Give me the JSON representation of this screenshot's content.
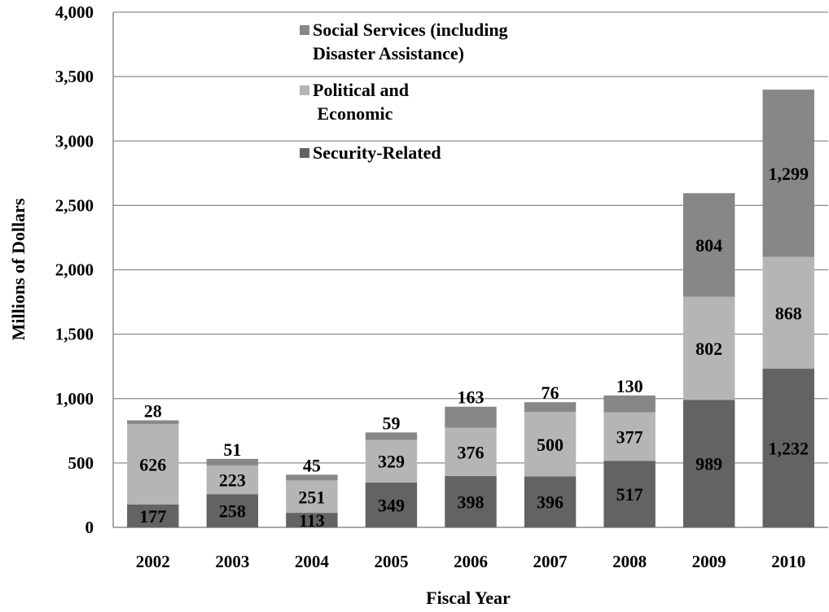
{
  "chart_data": {
    "type": "bar",
    "stacked": true,
    "categories": [
      "2002",
      "2003",
      "2004",
      "2005",
      "2006",
      "2007",
      "2008",
      "2009",
      "2010"
    ],
    "series": [
      {
        "name": "Security-Related",
        "values": [
          177,
          258,
          113,
          349,
          398,
          396,
          517,
          989,
          1232
        ],
        "labels": [
          "177",
          "258",
          "113",
          "349",
          "398",
          "396",
          "517",
          "989",
          "1,232"
        ],
        "color": "#636363"
      },
      {
        "name": "Political and Economic",
        "name_lines": [
          "Political and",
          " Economic"
        ],
        "values": [
          626,
          223,
          251,
          329,
          376,
          500,
          377,
          802,
          868
        ],
        "labels": [
          "626",
          "223",
          "251",
          "329",
          "376",
          "500",
          "377",
          "802",
          "868"
        ],
        "color": "#b5b5b5"
      },
      {
        "name": "Social Services (including Disaster Assistance)",
        "name_lines": [
          "Social Services (including",
          "Disaster Assistance)"
        ],
        "values": [
          28,
          51,
          45,
          59,
          163,
          76,
          130,
          804,
          1299
        ],
        "labels": [
          "28",
          "51",
          "45",
          "59",
          "163",
          "76",
          "130",
          "804",
          "1,299"
        ],
        "color": "#878787"
      }
    ],
    "xlabel": "Fiscal Year",
    "ylabel": "Millions of Dollars",
    "ylim": [
      0,
      4000
    ],
    "yticks": [
      0,
      500,
      1000,
      1500,
      2000,
      2500,
      3000,
      3500,
      4000
    ],
    "ytick_labels": [
      "0",
      "500",
      "1,000",
      "1,500",
      "2,000",
      "2,500",
      "3,000",
      "3,500",
      "4,000"
    ],
    "grid": true,
    "legend": "top-center (inside plot, reverse order)"
  }
}
